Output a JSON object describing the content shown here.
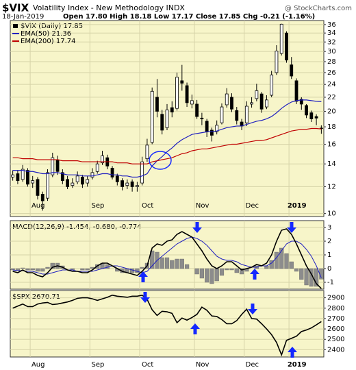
{
  "header": {
    "symbol": "$VIX",
    "title": "Volatility Index - New Methodology INDX",
    "watermark": "@ StockCharts.com",
    "date": "18-Jan-2019",
    "quote": "Open 17.80  High 18.18  Low 17.17  Close 17.85  Chg -0.21 (-1.16%)"
  },
  "chart_data": [
    {
      "type": "candlestick",
      "name": "$VIX (Daily) 17.85",
      "color": "#000000",
      "log_scale": true,
      "grid": true,
      "categories": [
        null,
        null,
        null,
        null,
        "Aug",
        null,
        null,
        null,
        null,
        null,
        null,
        null,
        null,
        null,
        null,
        null,
        "Sep",
        null,
        null,
        null,
        null,
        null,
        null,
        null,
        null,
        null,
        "Oct",
        null,
        null,
        null,
        null,
        null,
        null,
        null,
        null,
        null,
        null,
        "Nov",
        null,
        null,
        null,
        null,
        null,
        null,
        null,
        null,
        null,
        "Dec",
        null,
        null,
        null,
        null,
        null,
        null,
        null,
        null,
        "2019",
        null,
        null,
        null,
        null,
        null,
        null
      ],
      "open": [
        12.8,
        13.1,
        12.6,
        13.4,
        12.3,
        12.6,
        11.4,
        11.1,
        13.0,
        14.4,
        13.2,
        12.6,
        12.1,
        12.4,
        12.8,
        12.3,
        12.8,
        13.3,
        14.1,
        14.6,
        13.6,
        12.9,
        12.5,
        12.1,
        12.4,
        12.0,
        12.3,
        14.5,
        16.2,
        22.0,
        19.6,
        17.9,
        20.5,
        20.4,
        24.6,
        23.8,
        21.0,
        21.0,
        19.1,
        18.7,
        17.6,
        17.4,
        18.5,
        20.9,
        22.0,
        20.1,
        18.6,
        18.5,
        21.0,
        21.8,
        22.5,
        20.6,
        22.3,
        26.0,
        29.6,
        34.0,
        27.4,
        24.6,
        21.7,
        20.8,
        19.8,
        19.3,
        17.8
      ],
      "high": [
        13.4,
        13.4,
        13.9,
        13.6,
        12.9,
        12.8,
        11.6,
        13.5,
        15.1,
        14.8,
        13.5,
        12.9,
        12.7,
        13.3,
        13.0,
        12.9,
        13.6,
        14.3,
        15.3,
        14.9,
        13.8,
        13.1,
        12.7,
        12.6,
        12.6,
        12.4,
        14.7,
        16.6,
        23.5,
        24.9,
        20.2,
        21.0,
        21.4,
        26.0,
        27.4,
        24.3,
        22.4,
        21.6,
        19.8,
        19.0,
        17.9,
        18.8,
        21.1,
        23.4,
        22.6,
        20.6,
        19.0,
        21.4,
        22.0,
        24.1,
        22.8,
        22.3,
        26.3,
        31.3,
        36.2,
        34.4,
        28.9,
        25.0,
        22.0,
        21.0,
        20.1,
        19.6,
        18.18
      ],
      "low": [
        12.5,
        12.2,
        12.4,
        12.0,
        11.9,
        11.0,
        10.2,
        10.9,
        12.8,
        13.0,
        12.2,
        11.8,
        11.9,
        12.2,
        11.9,
        12.0,
        12.6,
        13.1,
        13.9,
        13.5,
        12.6,
        12.1,
        11.7,
        11.8,
        11.6,
        11.6,
        12.1,
        14.2,
        16.0,
        19.2,
        17.1,
        17.6,
        19.2,
        20.1,
        23.0,
        20.6,
        20.4,
        19.0,
        18.2,
        16.8,
        16.3,
        17.1,
        18.3,
        20.5,
        19.9,
        18.3,
        17.6,
        18.1,
        20.5,
        21.4,
        19.8,
        20.3,
        22.0,
        25.6,
        29.2,
        27.8,
        24.9,
        21.0,
        20.2,
        19.1,
        18.6,
        18.2,
        17.17
      ],
      "close": [
        13.0,
        12.5,
        13.5,
        12.2,
        12.5,
        11.3,
        10.9,
        13.2,
        14.6,
        13.3,
        12.5,
        12.0,
        12.3,
        12.9,
        12.2,
        12.6,
        13.2,
        14.0,
        14.8,
        13.8,
        12.8,
        12.4,
        12.0,
        12.3,
        12.0,
        12.1,
        14.2,
        15.9,
        22.9,
        20.0,
        17.6,
        20.2,
        19.9,
        25.2,
        24.2,
        21.2,
        21.5,
        19.3,
        19.0,
        17.4,
        17.0,
        18.2,
        20.6,
        22.5,
        20.3,
        18.8,
        18.1,
        20.7,
        21.2,
        23.0,
        20.3,
        21.6,
        25.6,
        30.1,
        36.1,
        28.3,
        25.4,
        21.4,
        21.0,
        19.5,
        19.0,
        19.1,
        17.85
      ],
      "series": [
        {
          "name": "EMA(50) 21.36",
          "color": "#2020c0",
          "values": [
            13.4,
            13.4,
            13.4,
            13.3,
            13.3,
            13.2,
            13.1,
            13.1,
            13.2,
            13.2,
            13.1,
            13.0,
            13.0,
            13.0,
            12.9,
            12.9,
            12.9,
            13.0,
            13.1,
            13.1,
            13.0,
            13.0,
            12.9,
            12.9,
            12.8,
            12.8,
            12.9,
            13.1,
            13.8,
            14.3,
            14.7,
            15.2,
            15.6,
            16.1,
            16.5,
            16.8,
            17.1,
            17.2,
            17.3,
            17.4,
            17.4,
            17.5,
            17.7,
            17.9,
            18.0,
            18.1,
            18.1,
            18.3,
            18.5,
            18.7,
            18.8,
            19.0,
            19.3,
            19.8,
            20.4,
            20.9,
            21.3,
            21.5,
            21.6,
            21.6,
            21.5,
            21.4,
            21.36
          ]
        },
        {
          "name": "EMA(200) 17.74",
          "color": "#c00000",
          "values": [
            14.6,
            14.6,
            14.5,
            14.5,
            14.5,
            14.4,
            14.4,
            14.4,
            14.4,
            14.4,
            14.3,
            14.3,
            14.3,
            14.3,
            14.2,
            14.2,
            14.2,
            14.2,
            14.2,
            14.2,
            14.2,
            14.1,
            14.1,
            14.1,
            14.0,
            14.0,
            14.0,
            14.0,
            14.2,
            14.3,
            14.4,
            14.5,
            14.6,
            14.8,
            15.0,
            15.1,
            15.3,
            15.4,
            15.5,
            15.5,
            15.6,
            15.7,
            15.8,
            15.9,
            16.0,
            16.0,
            16.1,
            16.2,
            16.3,
            16.4,
            16.4,
            16.5,
            16.7,
            16.9,
            17.1,
            17.3,
            17.5,
            17.6,
            17.7,
            17.7,
            17.8,
            17.8,
            17.74
          ]
        }
      ],
      "ylim": [
        9.8,
        37
      ],
      "yticks": [
        10,
        12,
        14,
        16,
        18,
        20,
        22,
        24,
        26,
        28,
        30,
        32,
        34,
        36
      ]
    },
    {
      "type": "macd",
      "title": "MACD(12,26,9) -1.454, -0.680, -0.774",
      "grid": true,
      "series": [
        {
          "color": "#8c8c8c",
          "style": "histogram",
          "values": [
            -0.1,
            -0.15,
            0.05,
            -0.1,
            -0.1,
            -0.2,
            -0.2,
            0.1,
            0.4,
            0.4,
            0.2,
            0,
            -0.1,
            0,
            -0.1,
            -0.1,
            0.1,
            0.3,
            0.4,
            0.3,
            0,
            -0.2,
            -0.3,
            -0.3,
            -0.3,
            -0.3,
            0.1,
            0.4,
            1.3,
            1.2,
            0.8,
            0.8,
            0.6,
            0.7,
            0.7,
            0.3,
            0,
            -0.4,
            -0.7,
            -1.0,
            -1.1,
            -0.9,
            -0.5,
            -0.1,
            -0.1,
            -0.3,
            -0.4,
            -0.2,
            0,
            0.2,
            0,
            0.2,
            0.6,
            1.2,
            1.5,
            1.1,
            0.5,
            -0.2,
            -0.8,
            -1.2,
            -1.3,
            -1.3,
            -0.774
          ]
        },
        {
          "color": "#2020c0",
          "values": [
            -0.1,
            -0.15,
            -0.15,
            -0.2,
            -0.2,
            -0.3,
            -0.4,
            -0.4,
            -0.3,
            -0.2,
            -0.1,
            -0.1,
            -0.1,
            -0.2,
            -0.2,
            -0.2,
            -0.2,
            -0.1,
            0.0,
            0.1,
            0.2,
            0.2,
            0.1,
            0.0,
            -0.1,
            -0.2,
            -0.3,
            -0.2,
            0.2,
            0.6,
            0.9,
            1.2,
            1.5,
            1.8,
            2.0,
            2.2,
            2.3,
            2.2,
            2.0,
            1.7,
            1.3,
            0.9,
            0.7,
            0.6,
            0.6,
            0.5,
            0.3,
            0.2,
            0.1,
            0.1,
            0.2,
            0.2,
            0.4,
            0.8,
            1.3,
            1.8,
            2.0,
            2.0,
            1.8,
            1.4,
            0.9,
            0.2,
            -0.68
          ]
        },
        {
          "color": "#000000",
          "values": [
            -0.2,
            -0.3,
            -0.1,
            -0.3,
            -0.3,
            -0.5,
            -0.6,
            -0.3,
            0.1,
            0.2,
            0.1,
            -0.1,
            -0.2,
            -0.2,
            -0.3,
            -0.3,
            -0.1,
            0.2,
            0.4,
            0.4,
            0.2,
            0.0,
            -0.2,
            -0.3,
            -0.4,
            -0.5,
            -0.2,
            0.2,
            1.5,
            1.8,
            1.7,
            2.0,
            2.1,
            2.5,
            2.7,
            2.5,
            2.3,
            1.8,
            1.3,
            0.7,
            0.2,
            0.0,
            0.2,
            0.5,
            0.5,
            0.2,
            -0.1,
            0.0,
            0.1,
            0.3,
            0.2,
            0.4,
            1.0,
            2.0,
            2.8,
            2.9,
            2.5,
            1.8,
            1.0,
            0.2,
            -0.4,
            -1.1,
            -1.454
          ]
        }
      ],
      "ylim": [
        -1.5,
        3.5
      ],
      "yticks": [
        -1,
        0,
        1,
        2,
        3
      ]
    },
    {
      "type": "line",
      "title": "$SPX 2670.71",
      "color": "#000000",
      "grid": true,
      "categories": [
        null,
        null,
        null,
        null,
        "Aug",
        null,
        null,
        null,
        null,
        null,
        null,
        null,
        null,
        null,
        null,
        null,
        "Sep",
        null,
        null,
        null,
        null,
        null,
        null,
        null,
        null,
        null,
        "Oct",
        null,
        null,
        null,
        null,
        null,
        null,
        null,
        null,
        null,
        null,
        "Nov",
        null,
        null,
        null,
        null,
        null,
        null,
        null,
        null,
        null,
        "Dec",
        null,
        null,
        null,
        null,
        null,
        null,
        null,
        null,
        "2019",
        null,
        null,
        null,
        null,
        null,
        null
      ],
      "values": [
        2800,
        2820,
        2840,
        2815,
        2815,
        2840,
        2850,
        2855,
        2835,
        2840,
        2850,
        2860,
        2875,
        2895,
        2900,
        2900,
        2890,
        2875,
        2890,
        2905,
        2925,
        2915,
        2910,
        2905,
        2915,
        2915,
        2925,
        2885,
        2785,
        2730,
        2770,
        2765,
        2750,
        2660,
        2705,
        2685,
        2710,
        2740,
        2810,
        2780,
        2725,
        2720,
        2690,
        2650,
        2650,
        2680,
        2740,
        2790,
        2700,
        2695,
        2650,
        2600,
        2545,
        2470,
        2350,
        2490,
        2510,
        2530,
        2575,
        2590,
        2610,
        2640,
        2670.71
      ],
      "ylim": [
        2330,
        2970
      ],
      "yticks": [
        2400,
        2500,
        2600,
        2700,
        2800,
        2900
      ]
    }
  ]
}
